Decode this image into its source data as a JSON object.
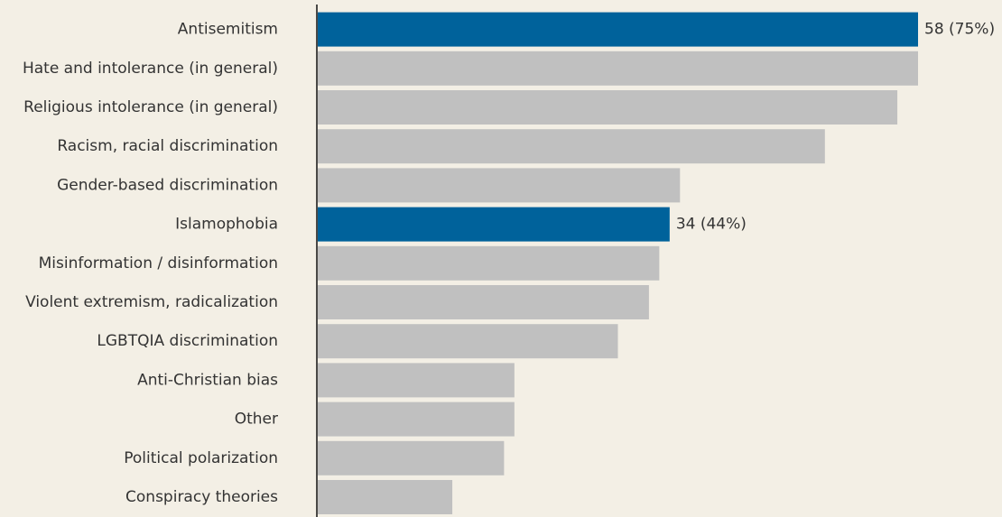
{
  "chart_data": {
    "type": "bar",
    "orientation": "horizontal",
    "categories": [
      "Antisemitism",
      "Hate and intolerance (in general)",
      "Religious intolerance (in general)",
      "Racism, racial discrimination",
      "Gender-based discrimination",
      "Islamophobia",
      "Misinformation / disinformation",
      "Violent extremism, radicalization",
      "LGBTQIA discrimination",
      "Anti-Christian bias",
      "Other",
      "Political polarization",
      "Conspiracy theories"
    ],
    "values": [
      58,
      58,
      56,
      49,
      35,
      34,
      33,
      32,
      29,
      19,
      19,
      18,
      13
    ],
    "value_labels": [
      "58 (75%)",
      null,
      null,
      null,
      null,
      "34 (44%)",
      null,
      null,
      null,
      null,
      null,
      null,
      null
    ],
    "colors": [
      "#00629b",
      "#c0c0c0",
      "#c0c0c0",
      "#c0c0c0",
      "#c0c0c0",
      "#00629b",
      "#c0c0c0",
      "#c0c0c0",
      "#c0c0c0",
      "#c0c0c0",
      "#c0c0c0",
      "#c0c0c0",
      "#c0c0c0"
    ],
    "xlim": [
      0,
      58
    ]
  }
}
